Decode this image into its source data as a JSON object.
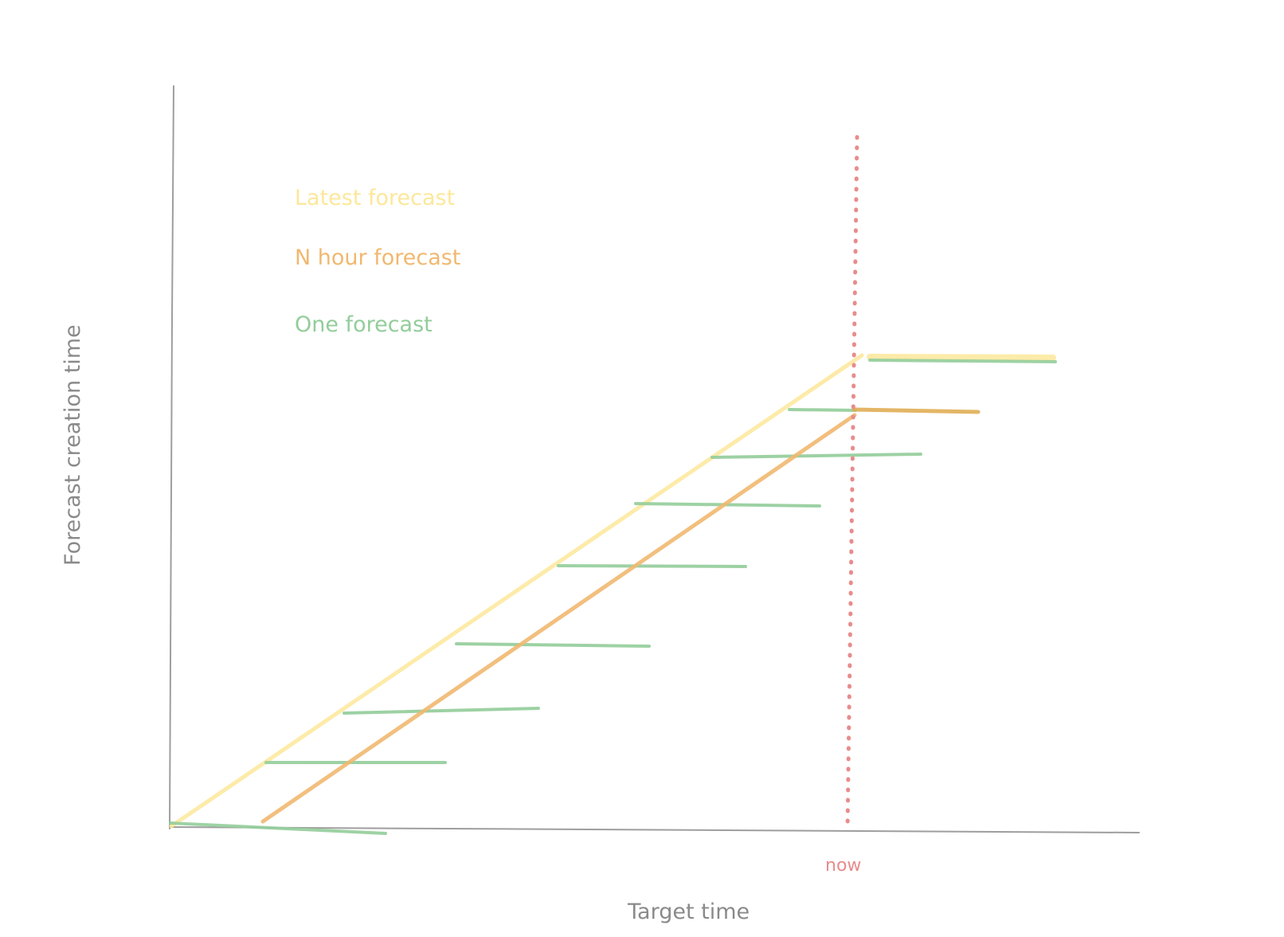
{
  "legend": {
    "latest": "Latest forecast",
    "nhour": "N hour forecast",
    "one": "One forecast"
  },
  "axes": {
    "xlabel": "Target time",
    "ylabel": "Forecast creation time"
  },
  "now_label": "now",
  "colors": {
    "axis": "#9e9e9e",
    "latest": "#fde79a",
    "nhour": "#f1b870",
    "one": "#93cd9a",
    "now": "#e88c8c",
    "text_gray": "#8a8a8a"
  }
}
